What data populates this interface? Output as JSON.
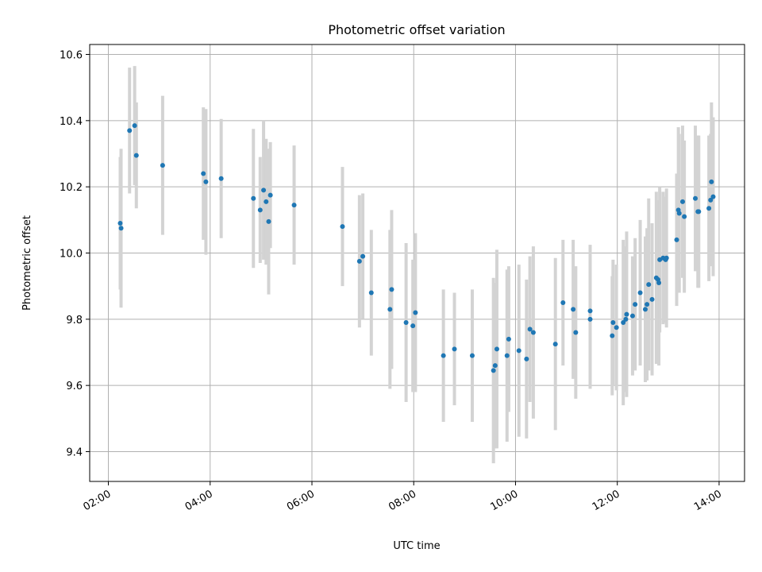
{
  "chart_data": {
    "type": "scatter",
    "title": "Photometric offset variation",
    "xlabel": "UTC time",
    "ylabel": "Photometric offset",
    "x_ticks": [
      "02:00",
      "04:00",
      "06:00",
      "08:00",
      "10:00",
      "12:00",
      "14:00"
    ],
    "y_ticks": [
      "9.4",
      "9.6",
      "9.8",
      "10.0",
      "10.2",
      "10.4",
      "10.6"
    ],
    "xlim": [
      "01:38",
      "14:30"
    ],
    "ylim": [
      9.31,
      10.63
    ],
    "grid": true,
    "colors": {
      "marker": "#1f77b4",
      "errorbar": "#d3d3d3",
      "grid": "#b0b0b0"
    },
    "series": [
      {
        "x": [
          "02:14",
          "02:15",
          "02:25",
          "02:31",
          "02:33",
          "03:04",
          "03:52",
          "03:55",
          "04:13",
          "04:51",
          "04:59",
          "05:03",
          "05:06",
          "05:09",
          "05:11",
          "05:39",
          "06:36",
          "06:56",
          "07:00",
          "07:10",
          "07:32",
          "07:34",
          "07:51",
          "07:59",
          "08:02",
          "08:35",
          "08:48",
          "09:09",
          "09:34",
          "09:36",
          "09:38",
          "09:50",
          "09:52",
          "10:04",
          "10:13",
          "10:17",
          "10:21",
          "10:47",
          "10:56",
          "11:08",
          "11:11",
          "11:28",
          "11:28",
          "11:54",
          "11:55",
          "11:59",
          "12:07",
          "12:10",
          "12:11",
          "12:18",
          "12:21",
          "12:27",
          "12:33",
          "12:35",
          "12:37",
          "12:41",
          "12:46",
          "12:48",
          "12:49",
          "12:50",
          "12:54",
          "12:57",
          "12:58",
          "13:10",
          "13:12",
          "13:13",
          "13:17",
          "13:19",
          "13:32",
          "13:35",
          "13:36",
          "13:48",
          "13:50",
          "13:51",
          "13:53"
        ],
        "y": [
          10.09,
          10.075,
          10.37,
          10.385,
          10.295,
          10.265,
          10.24,
          10.215,
          10.225,
          10.165,
          10.13,
          10.19,
          10.155,
          10.095,
          10.175,
          10.145,
          10.08,
          9.975,
          9.99,
          9.88,
          9.83,
          9.89,
          9.79,
          9.78,
          9.82,
          9.69,
          9.71,
          9.69,
          9.645,
          9.66,
          9.71,
          9.69,
          9.74,
          9.705,
          9.68,
          9.77,
          9.76,
          9.725,
          9.85,
          9.83,
          9.76,
          9.825,
          9.8,
          9.75,
          9.79,
          9.775,
          9.79,
          9.8,
          9.815,
          9.81,
          9.845,
          9.88,
          9.83,
          9.845,
          9.905,
          9.86,
          9.925,
          9.92,
          9.91,
          9.98,
          9.985,
          9.98,
          9.985,
          10.04,
          10.13,
          10.12,
          10.155,
          10.11,
          10.165,
          10.125,
          10.125,
          10.135,
          10.16,
          10.215,
          10.17
        ],
        "yerr": [
          0.2,
          0.24,
          0.19,
          0.18,
          0.16,
          0.21,
          0.2,
          0.22,
          0.18,
          0.21,
          0.16,
          0.21,
          0.19,
          0.22,
          0.16,
          0.18,
          0.18,
          0.2,
          0.19,
          0.19,
          0.24,
          0.24,
          0.24,
          0.2,
          0.24,
          0.2,
          0.17,
          0.2,
          0.28,
          0.25,
          0.3,
          0.26,
          0.22,
          0.26,
          0.24,
          0.22,
          0.26,
          0.26,
          0.19,
          0.21,
          0.2,
          0.2,
          0.21,
          0.18,
          0.19,
          0.19,
          0.25,
          0.22,
          0.25,
          0.18,
          0.2,
          0.22,
          0.22,
          0.23,
          0.26,
          0.23,
          0.26,
          0.24,
          0.25,
          0.22,
          0.2,
          0.19,
          0.21,
          0.2,
          0.25,
          0.24,
          0.23,
          0.23,
          0.22,
          0.23,
          0.23,
          0.22,
          0.2,
          0.24,
          0.24
        ]
      }
    ]
  }
}
